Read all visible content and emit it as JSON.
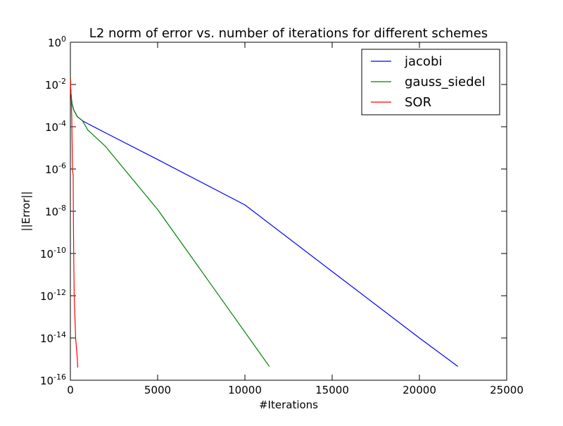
{
  "chart_data": {
    "type": "line",
    "title": "L2 norm of error vs. number of iterations for different schemes",
    "xlabel": "#Iterations",
    "ylabel": "||Error||",
    "xlim": [
      0,
      25000
    ],
    "ylim": [
      1e-16,
      1
    ],
    "yscale": "log",
    "xticks": [
      0,
      5000,
      10000,
      15000,
      20000,
      25000
    ],
    "xtick_labels": [
      "0",
      "5000",
      "10000",
      "15000",
      "20000",
      "25000"
    ],
    "yticks": [
      {
        "exp": 0,
        "base": "10",
        "sup": "0"
      },
      {
        "exp": -2,
        "base": "10",
        "sup": "-2"
      },
      {
        "exp": -4,
        "base": "10",
        "sup": "-4"
      },
      {
        "exp": -6,
        "base": "10",
        "sup": "-6"
      },
      {
        "exp": -8,
        "base": "10",
        "sup": "-8"
      },
      {
        "exp": -10,
        "base": "10",
        "sup": "-10"
      },
      {
        "exp": -12,
        "base": "10",
        "sup": "-12"
      },
      {
        "exp": -14,
        "base": "10",
        "sup": "-14"
      },
      {
        "exp": -16,
        "base": "10",
        "sup": "-16"
      }
    ],
    "grid": false,
    "legend_position": "top-right",
    "series": [
      {
        "name": "jacobi",
        "color": "#0000ff",
        "points": [
          [
            0,
            0.025
          ],
          [
            20,
            0.006
          ],
          [
            50,
            0.0025
          ],
          [
            100,
            0.0012
          ],
          [
            200,
            0.0006
          ],
          [
            400,
            0.0003
          ],
          [
            700,
            0.00019
          ],
          [
            1000,
            0.00014
          ],
          [
            2000,
            5.2e-05
          ],
          [
            5000,
            2.8e-06
          ],
          [
            10000,
            2e-08
          ],
          [
            15000,
            1.4e-11
          ],
          [
            20000,
            1e-14
          ],
          [
            22200,
            4.5e-16
          ]
        ]
      },
      {
        "name": "gauss_siedel",
        "color": "#008000",
        "points": [
          [
            0,
            0.025
          ],
          [
            20,
            0.006
          ],
          [
            50,
            0.0025
          ],
          [
            100,
            0.0012
          ],
          [
            200,
            0.0006
          ],
          [
            400,
            0.0003
          ],
          [
            700,
            0.00019
          ],
          [
            1000,
            7e-05
          ],
          [
            2000,
            1.2e-05
          ],
          [
            5000,
            1.2e-08
          ],
          [
            8000,
            4e-12
          ],
          [
            11400,
            4.5e-16
          ]
        ]
      },
      {
        "name": "SOR",
        "color": "#ff0000",
        "points": [
          [
            0,
            0.02
          ],
          [
            20,
            0.006
          ],
          [
            50,
            0.0025
          ],
          [
            80,
            0.0003
          ],
          [
            120,
            1e-06
          ],
          [
            160,
            5e-07
          ],
          [
            170,
            1e-08
          ],
          [
            190,
            1e-10
          ],
          [
            220,
            1e-12
          ],
          [
            300,
            1e-14
          ],
          [
            400,
            1e-15
          ],
          [
            420,
            4e-16
          ]
        ]
      }
    ]
  }
}
